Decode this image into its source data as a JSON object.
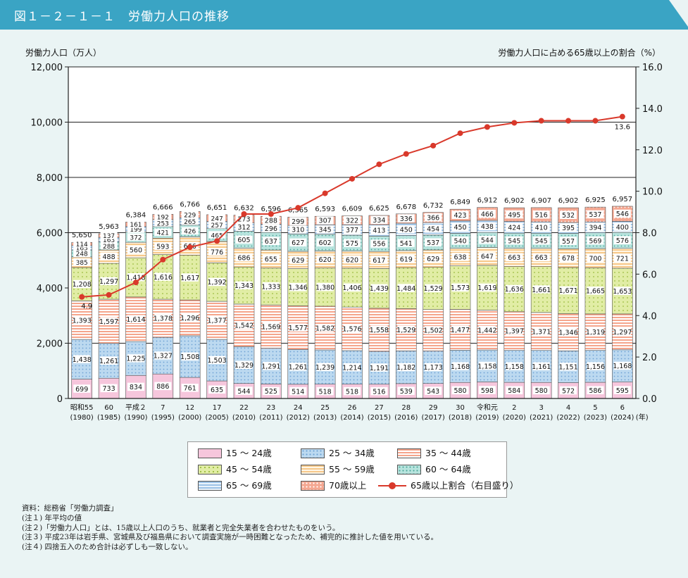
{
  "header": {
    "title": "図１－２－１－１　労働力人口の推移"
  },
  "chart_data": {
    "type": "bar",
    "stacked": true,
    "title": "図１－２－１－１　労働力人口の推移",
    "ylabel": "労働力人口（万人）",
    "y2label": "労働力人口に占める65歳以上の割合（%）",
    "ylim": [
      0,
      12000
    ],
    "y2lim": [
      0.0,
      16.0
    ],
    "yticks": [
      "0",
      "2,000",
      "4,000",
      "6,000",
      "8,000",
      "10,000",
      "12,000"
    ],
    "y2ticks": [
      "0.0",
      "2.0",
      "4.0",
      "6.0",
      "8.0",
      "10.0",
      "12.0",
      "14.0",
      "16.0"
    ],
    "categories": [
      {
        "label": "昭和55",
        "year": "(1980)"
      },
      {
        "label": "60",
        "year": "(1985)"
      },
      {
        "label": "平成２",
        "year": "(1990)"
      },
      {
        "label": "7",
        "year": "(1995)"
      },
      {
        "label": "12",
        "year": "(2000)"
      },
      {
        "label": "17",
        "year": "(2005)"
      },
      {
        "label": "22",
        "year": "(2010)"
      },
      {
        "label": "23",
        "year": "(2011)"
      },
      {
        "label": "24",
        "year": "(2012)"
      },
      {
        "label": "25",
        "year": "(2013)"
      },
      {
        "label": "26",
        "year": "(2014)"
      },
      {
        "label": "27",
        "year": "(2015)"
      },
      {
        "label": "28",
        "year": "(2016)"
      },
      {
        "label": "29",
        "year": "(2017)"
      },
      {
        "label": "30",
        "year": "(2018)"
      },
      {
        "label": "令和元",
        "year": "(2019)"
      },
      {
        "label": "2",
        "year": "(2020)"
      },
      {
        "label": "3",
        "year": "(2021)"
      },
      {
        "label": "4",
        "year": "(2022)"
      },
      {
        "label": "5",
        "year": "(2023)"
      },
      {
        "label": "6",
        "year": "(2024)"
      }
    ],
    "year_unit": "(年)",
    "totals": [
      5650,
      5963,
      6384,
      6666,
      6766,
      6651,
      6632,
      6596,
      6565,
      6593,
      6609,
      6625,
      6678,
      6732,
      6849,
      6912,
      6902,
      6907,
      6902,
      6925,
      6957
    ],
    "totals_text": [
      "5,650",
      "5,963",
      "6,384",
      "6,666",
      "6,766",
      "6,651",
      "6,632",
      "6,596",
      "6,565",
      "6,593",
      "6,609",
      "6,625",
      "6,678",
      "6,732",
      "6,849",
      "6,912",
      "6,902",
      "6,907",
      "6,902",
      "6,925",
      "6,957"
    ],
    "series": [
      {
        "name": "15 ～ 24歳",
        "color": "#f6c6dc",
        "pattern": "none",
        "values": [
          699,
          733,
          834,
          886,
          761,
          635,
          544,
          525,
          514,
          518,
          518,
          516,
          539,
          543,
          580,
          598,
          584,
          580,
          572,
          586,
          595
        ]
      },
      {
        "name": "25 ～ 34歳",
        "color": "#bcd9f0",
        "pattern": "dots-blue",
        "values": [
          1438,
          1261,
          1225,
          1327,
          1508,
          1503,
          1329,
          1291,
          1261,
          1239,
          1214,
          1191,
          1182,
          1173,
          1168,
          1158,
          1158,
          1161,
          1151,
          1156,
          1168
        ]
      },
      {
        "name": "35 ～ 44歳",
        "color": "#f5a58c",
        "pattern": "hlines-red",
        "values": [
          1393,
          1597,
          1614,
          1378,
          1296,
          1377,
          1542,
          1569,
          1577,
          1582,
          1576,
          1558,
          1529,
          1502,
          1477,
          1442,
          1397,
          1371,
          1346,
          1319,
          1297
        ]
      },
      {
        "name": "45 ～ 54歳",
        "color": "#e1eda5",
        "pattern": "dots-green",
        "values": [
          1208,
          1297,
          1418,
          1616,
          1617,
          1392,
          1343,
          1333,
          1346,
          1380,
          1406,
          1439,
          1484,
          1529,
          1573,
          1619,
          1636,
          1661,
          1671,
          1665,
          1653
        ]
      },
      {
        "name": "55 ～ 59歳",
        "color": "#fde2b8",
        "pattern": "hlines-orange",
        "values": [
          385,
          488,
          560,
          593,
          666,
          776,
          686,
          655,
          629,
          620,
          620,
          617,
          619,
          629,
          638,
          647,
          663,
          663,
          678,
          700,
          721
        ]
      },
      {
        "name": "60 ～ 64歳",
        "color": "#b8e4de",
        "pattern": "dots-teal",
        "values": [
          248,
          288,
          372,
          421,
          426,
          465,
          605,
          637,
          627,
          602,
          575,
          556,
          541,
          537,
          540,
          544,
          545,
          545,
          557,
          569,
          576
        ]
      },
      {
        "name": "65 ～ 69歳",
        "color": "#cfe3f5",
        "pattern": "hlines-blue",
        "values": [
          165,
          163,
          199,
          253,
          265,
          257,
          312,
          296,
          310,
          345,
          377,
          413,
          450,
          454,
          450,
          438,
          424,
          410,
          395,
          394,
          400
        ]
      },
      {
        "name": "70歳以上",
        "color": "#f4a791",
        "pattern": "dots-white",
        "values": [
          114,
          137,
          161,
          192,
          229,
          247,
          273,
          288,
          299,
          307,
          322,
          334,
          336,
          366,
          423,
          466,
          495,
          516,
          532,
          537,
          546
        ]
      }
    ],
    "line": {
      "name": "65歳以上割合（右目盛り）",
      "color": "#d9392b",
      "axis": "right",
      "values": [
        4.9,
        5.0,
        5.6,
        6.7,
        7.3,
        7.6,
        8.9,
        8.9,
        9.2,
        9.9,
        10.6,
        11.3,
        11.8,
        12.2,
        12.8,
        13.1,
        13.3,
        13.4,
        13.4,
        13.4,
        13.6
      ],
      "labels": {
        "first": "4.9",
        "last": "13.6"
      }
    },
    "grid": {
      "major_lines_at": [
        2000,
        6000,
        8000,
        10000
      ]
    }
  },
  "legend": [
    {
      "label": "15 ～ 24歳"
    },
    {
      "label": "25 ～ 34歳"
    },
    {
      "label": "35 ～ 44歳"
    },
    {
      "label": "45 ～ 54歳"
    },
    {
      "label": "55 ～ 59歳"
    },
    {
      "label": "60 ～ 64歳"
    },
    {
      "label": "65 ～ 69歳"
    },
    {
      "label": "70歳以上"
    },
    {
      "label": "65歳以上割合（右目盛り）"
    }
  ],
  "notes": [
    "資料：総務省「労働力調査」",
    "(注１) 年平均の値",
    "(注２)「労働力人口」とは、15歳以上人口のうち、就業者と完全失業者を合わせたものをいう。",
    "(注３) 平成23年は岩手県、宮城県及び福島県において調査実施が一時困難となったため、補完的に推計した値を用いている。",
    "(注４) 四捨五入のため合計は必ずしも一致しない。"
  ]
}
